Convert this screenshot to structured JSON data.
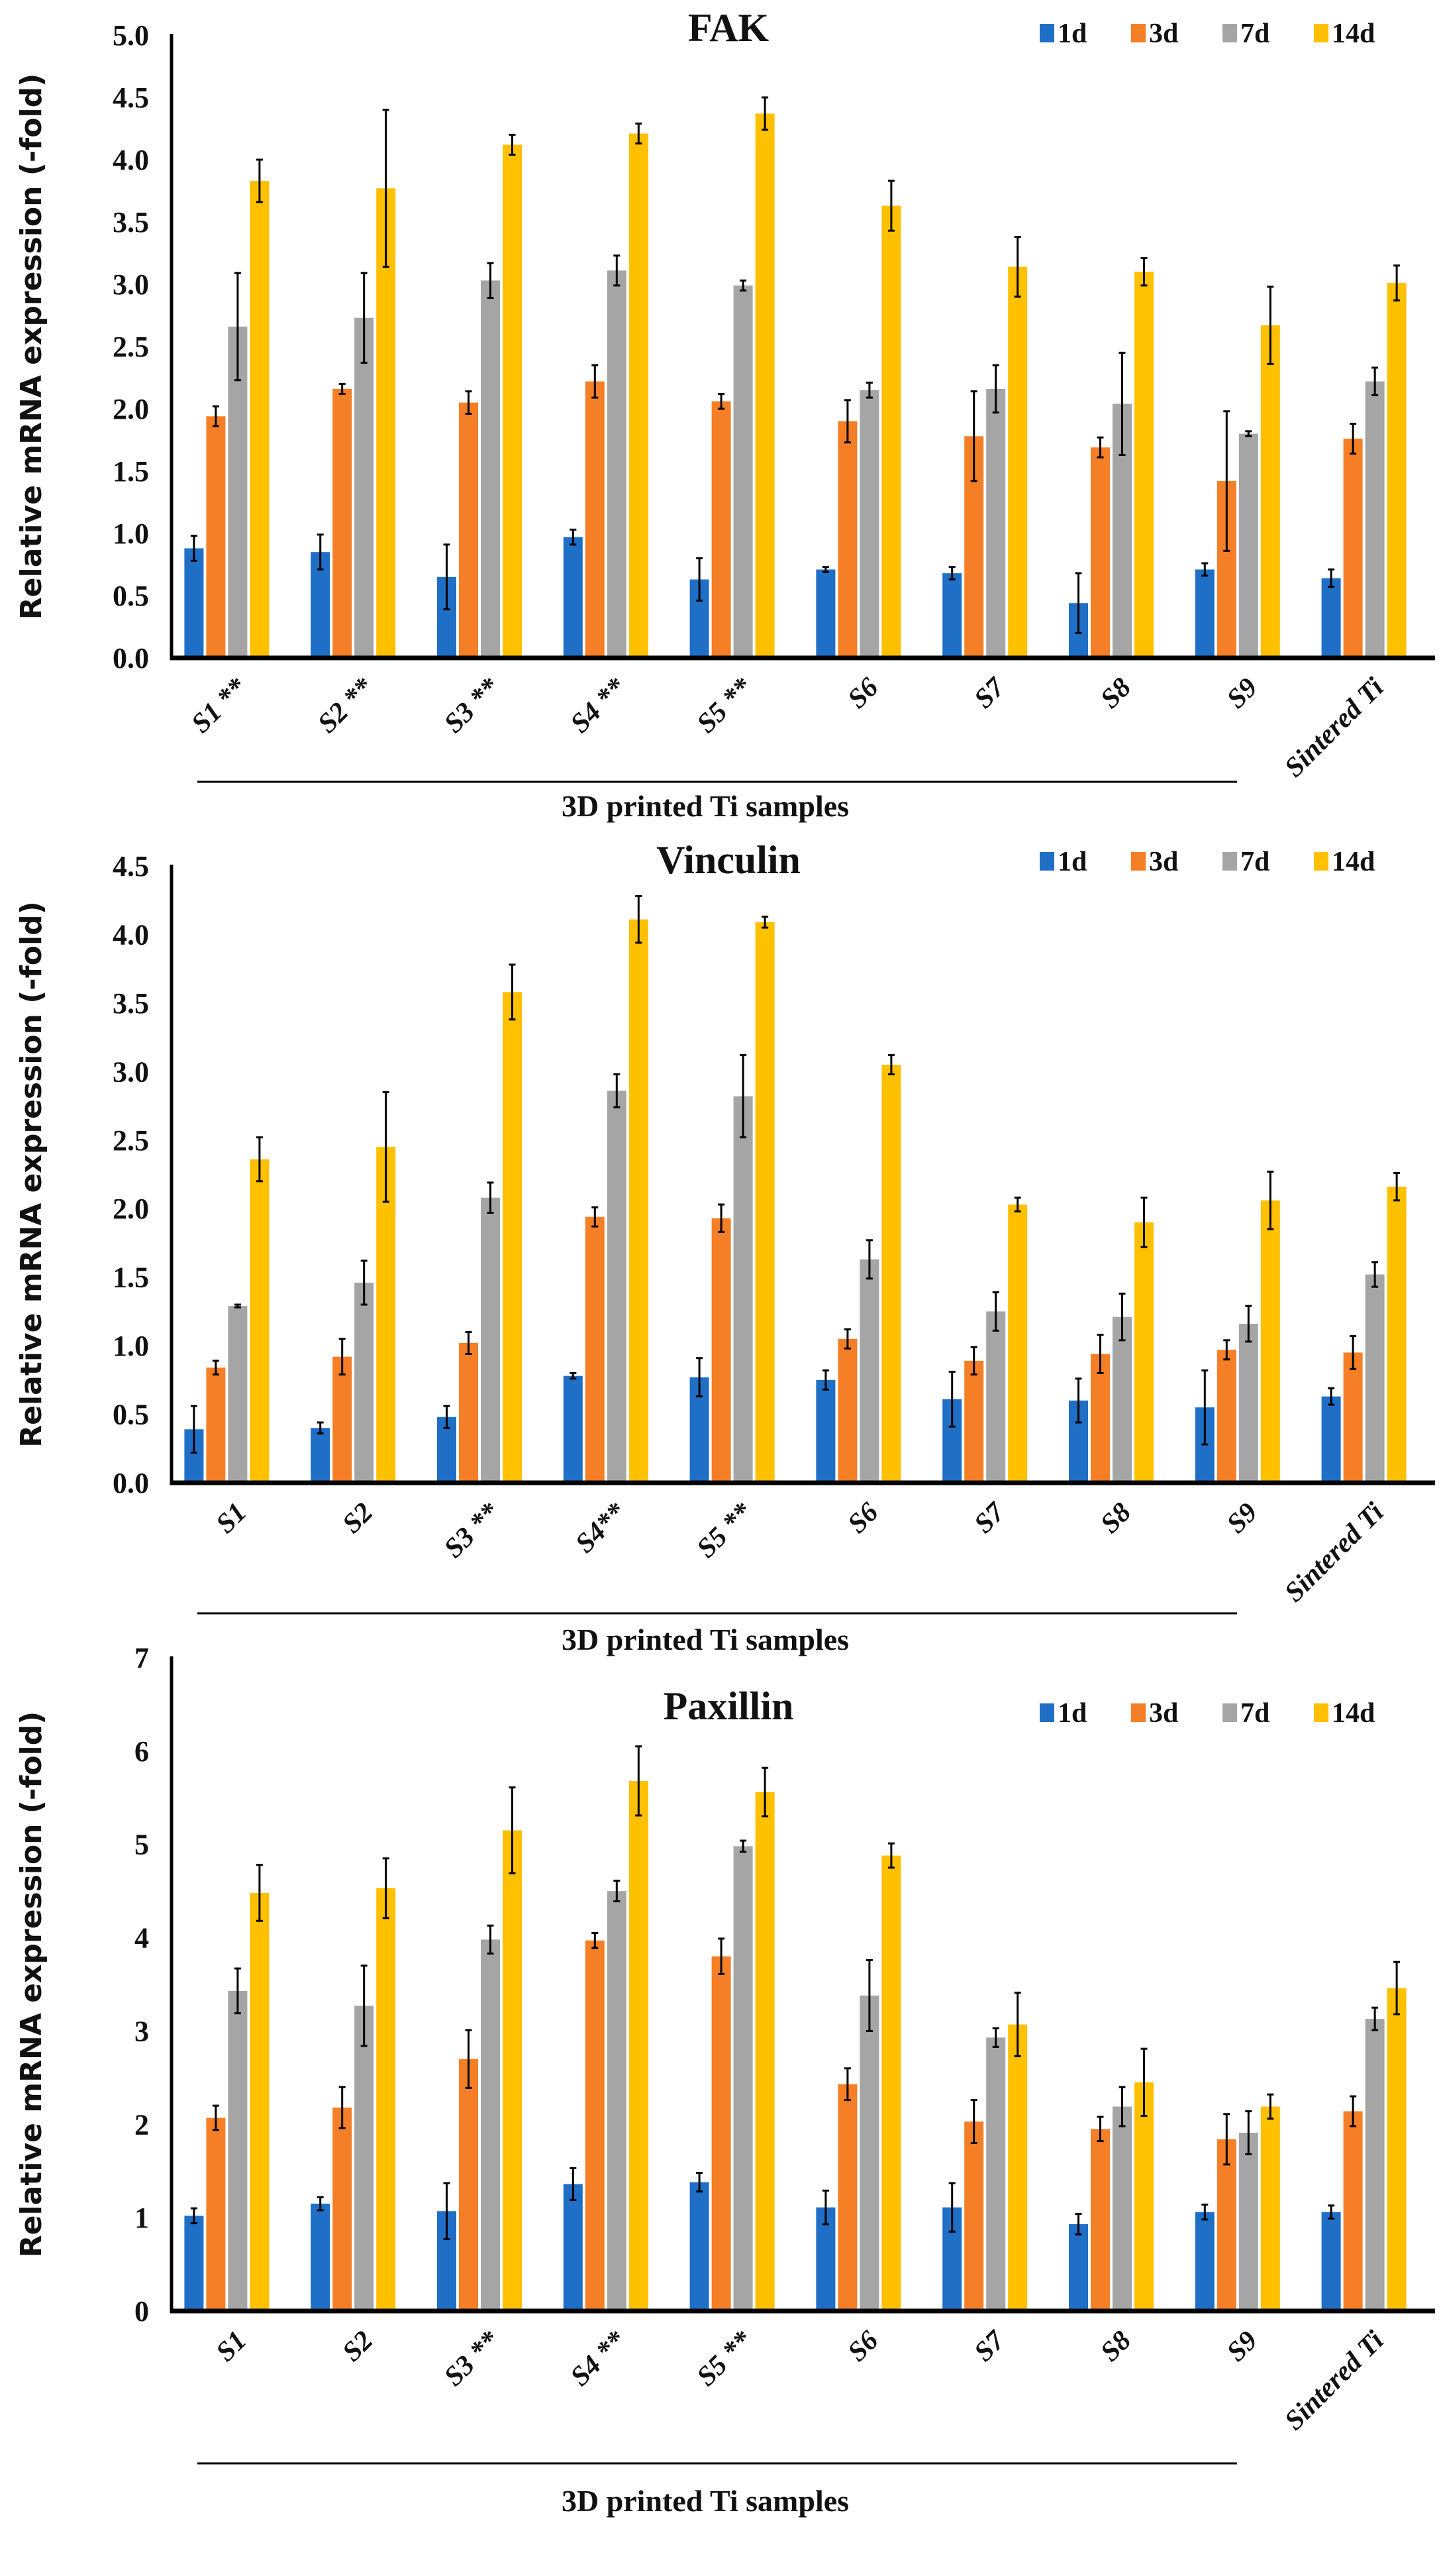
{
  "colors": {
    "1d": "#1F6FC6",
    "3d": "#F57F27",
    "7d": "#A5A5A5",
    "14d": "#FFC000",
    "axis": "#000000"
  },
  "chart_data": [
    {
      "type": "bar",
      "title": "FAK",
      "ylabel": "Relative mRNA expression (-fold)",
      "ylim": [
        0,
        5.0
      ],
      "yticks": [
        "0.0",
        "0.5",
        "1.0",
        "1.5",
        "2.0",
        "2.5",
        "3.0",
        "3.5",
        "4.0",
        "4.5",
        "5.0"
      ],
      "legend_position": "top-right",
      "grid": false,
      "categories": [
        "S1 **",
        "S2 **",
        "S3 **",
        "S4 **",
        "S5 **",
        "S6",
        "S7",
        "S8",
        "S9",
        "Sintered Ti"
      ],
      "group_label": "3D printed Ti samples",
      "series": [
        {
          "name": "1d",
          "values": [
            0.88,
            0.85,
            0.65,
            0.97,
            0.63,
            0.71,
            0.68,
            0.44,
            0.71,
            0.64
          ],
          "errors": [
            0.1,
            0.14,
            0.26,
            0.06,
            0.17,
            0.02,
            0.05,
            0.24,
            0.05,
            0.07
          ]
        },
        {
          "name": "3d",
          "values": [
            1.94,
            2.16,
            2.05,
            2.22,
            2.06,
            1.9,
            1.78,
            1.69,
            1.42,
            1.76
          ],
          "errors": [
            0.08,
            0.04,
            0.09,
            0.13,
            0.06,
            0.17,
            0.36,
            0.08,
            0.56,
            0.12
          ]
        },
        {
          "name": "7d",
          "values": [
            2.66,
            2.73,
            3.03,
            3.11,
            2.99,
            2.15,
            2.16,
            2.04,
            1.8,
            2.22
          ],
          "errors": [
            0.43,
            0.36,
            0.14,
            0.12,
            0.04,
            0.06,
            0.19,
            0.41,
            0.02,
            0.11
          ]
        },
        {
          "name": "14d",
          "values": [
            3.83,
            3.77,
            4.12,
            4.21,
            4.37,
            3.63,
            3.14,
            3.1,
            2.67,
            3.01
          ],
          "errors": [
            0.17,
            0.63,
            0.08,
            0.08,
            0.13,
            0.2,
            0.24,
            0.11,
            0.31,
            0.14
          ]
        }
      ]
    },
    {
      "type": "bar",
      "title": "Vinculin",
      "ylabel": "Relative mRNA expression (-fold)",
      "ylim": [
        0,
        4.5
      ],
      "yticks": [
        "0.0",
        "0.5",
        "1.0",
        "1.5",
        "2.0",
        "2.5",
        "3.0",
        "3.5",
        "4.0",
        "4.5"
      ],
      "legend_position": "top-right",
      "grid": false,
      "categories": [
        "S1",
        "S2",
        "S3 **",
        "S4**",
        "S5 **",
        "S6",
        "S7",
        "S8",
        "S9",
        "Sintered Ti"
      ],
      "group_label": "3D printed Ti samples",
      "series": [
        {
          "name": "1d",
          "values": [
            0.39,
            0.4,
            0.48,
            0.78,
            0.77,
            0.75,
            0.61,
            0.6,
            0.55,
            0.63
          ],
          "errors": [
            0.17,
            0.04,
            0.08,
            0.02,
            0.14,
            0.07,
            0.2,
            0.16,
            0.27,
            0.06
          ]
        },
        {
          "name": "3d",
          "values": [
            0.84,
            0.92,
            1.02,
            1.94,
            1.93,
            1.05,
            0.89,
            0.94,
            0.97,
            0.95
          ],
          "errors": [
            0.05,
            0.13,
            0.08,
            0.07,
            0.1,
            0.07,
            0.1,
            0.14,
            0.07,
            0.12
          ]
        },
        {
          "name": "7d",
          "values": [
            1.29,
            1.46,
            2.08,
            2.86,
            2.82,
            1.63,
            1.25,
            1.21,
            1.16,
            1.52
          ],
          "errors": [
            0.01,
            0.16,
            0.11,
            0.12,
            0.3,
            0.14,
            0.14,
            0.17,
            0.13,
            0.09
          ]
        },
        {
          "name": "14d",
          "values": [
            2.36,
            2.45,
            3.58,
            4.11,
            4.09,
            3.05,
            2.03,
            1.9,
            2.06,
            2.16
          ],
          "errors": [
            0.16,
            0.4,
            0.2,
            0.17,
            0.04,
            0.07,
            0.05,
            0.18,
            0.21,
            0.1
          ]
        }
      ]
    },
    {
      "type": "bar",
      "title": "Paxillin",
      "ylabel": "Relative mRNA expression (-fold)",
      "ylim": [
        0,
        7
      ],
      "yticks": [
        "0",
        "1",
        "2",
        "3",
        "4",
        "5",
        "6",
        "7"
      ],
      "legend_position": "top-right",
      "grid": false,
      "categories": [
        "S1",
        "S2",
        "S3 **",
        "S4 **",
        "S5 **",
        "S6",
        "S7",
        "S8",
        "S9",
        "Sintered Ti"
      ],
      "group_label": "3D printed Ti samples",
      "series": [
        {
          "name": "1d",
          "values": [
            1.02,
            1.15,
            1.07,
            1.36,
            1.38,
            1.11,
            1.11,
            0.93,
            1.06,
            1.06
          ],
          "errors": [
            0.08,
            0.07,
            0.3,
            0.17,
            0.1,
            0.18,
            0.26,
            0.11,
            0.08,
            0.07
          ]
        },
        {
          "name": "3d",
          "values": [
            2.07,
            2.18,
            2.7,
            3.97,
            3.8,
            2.43,
            2.03,
            1.95,
            1.84,
            2.14
          ],
          "errors": [
            0.13,
            0.22,
            0.31,
            0.08,
            0.19,
            0.17,
            0.23,
            0.13,
            0.27,
            0.16
          ]
        },
        {
          "name": "7d",
          "values": [
            3.43,
            3.27,
            3.98,
            4.5,
            4.98,
            3.38,
            2.93,
            2.19,
            1.91,
            3.13
          ],
          "errors": [
            0.24,
            0.43,
            0.15,
            0.11,
            0.06,
            0.38,
            0.1,
            0.21,
            0.23,
            0.12
          ]
        },
        {
          "name": "14d",
          "values": [
            4.48,
            4.53,
            5.15,
            5.68,
            5.56,
            4.88,
            3.07,
            2.45,
            2.19,
            3.46
          ],
          "errors": [
            0.3,
            0.32,
            0.46,
            0.37,
            0.26,
            0.13,
            0.34,
            0.36,
            0.13,
            0.28
          ]
        }
      ]
    }
  ]
}
